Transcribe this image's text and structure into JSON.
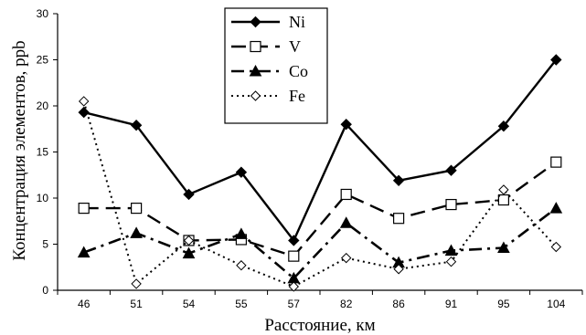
{
  "chart_data": {
    "type": "line",
    "categories": [
      "46",
      "51",
      "54",
      "55",
      "57",
      "82",
      "86",
      "91",
      "95",
      "104"
    ],
    "xlabel": "Расстояние, км",
    "ylabel": "Концентрация элементов, ppb",
    "ylim": [
      0,
      30
    ],
    "yticks": [
      "0",
      "5",
      "10",
      "15",
      "20",
      "25",
      "30"
    ],
    "grid": false,
    "legend_position": "top-center",
    "series": [
      {
        "name": "Ni",
        "values": [
          19.3,
          17.9,
          10.4,
          12.8,
          5.4,
          18.0,
          11.9,
          13.0,
          17.8,
          25.0
        ],
        "line": "solid",
        "marker": "filled-diamond"
      },
      {
        "name": "V",
        "values": [
          8.9,
          8.9,
          5.4,
          5.5,
          3.7,
          10.4,
          7.8,
          9.3,
          9.8,
          13.9
        ],
        "line": "long-dash",
        "marker": "open-square"
      },
      {
        "name": "Co",
        "values": [
          4.1,
          6.2,
          4.0,
          6.1,
          1.3,
          7.3,
          3.0,
          4.3,
          4.6,
          8.9
        ],
        "line": "dash-dot",
        "marker": "filled-triangle"
      },
      {
        "name": "Fe",
        "values": [
          20.5,
          0.7,
          5.4,
          2.7,
          0.4,
          3.5,
          2.3,
          3.1,
          10.9,
          4.7
        ],
        "line": "dotted",
        "marker": "open-diamond"
      }
    ]
  }
}
